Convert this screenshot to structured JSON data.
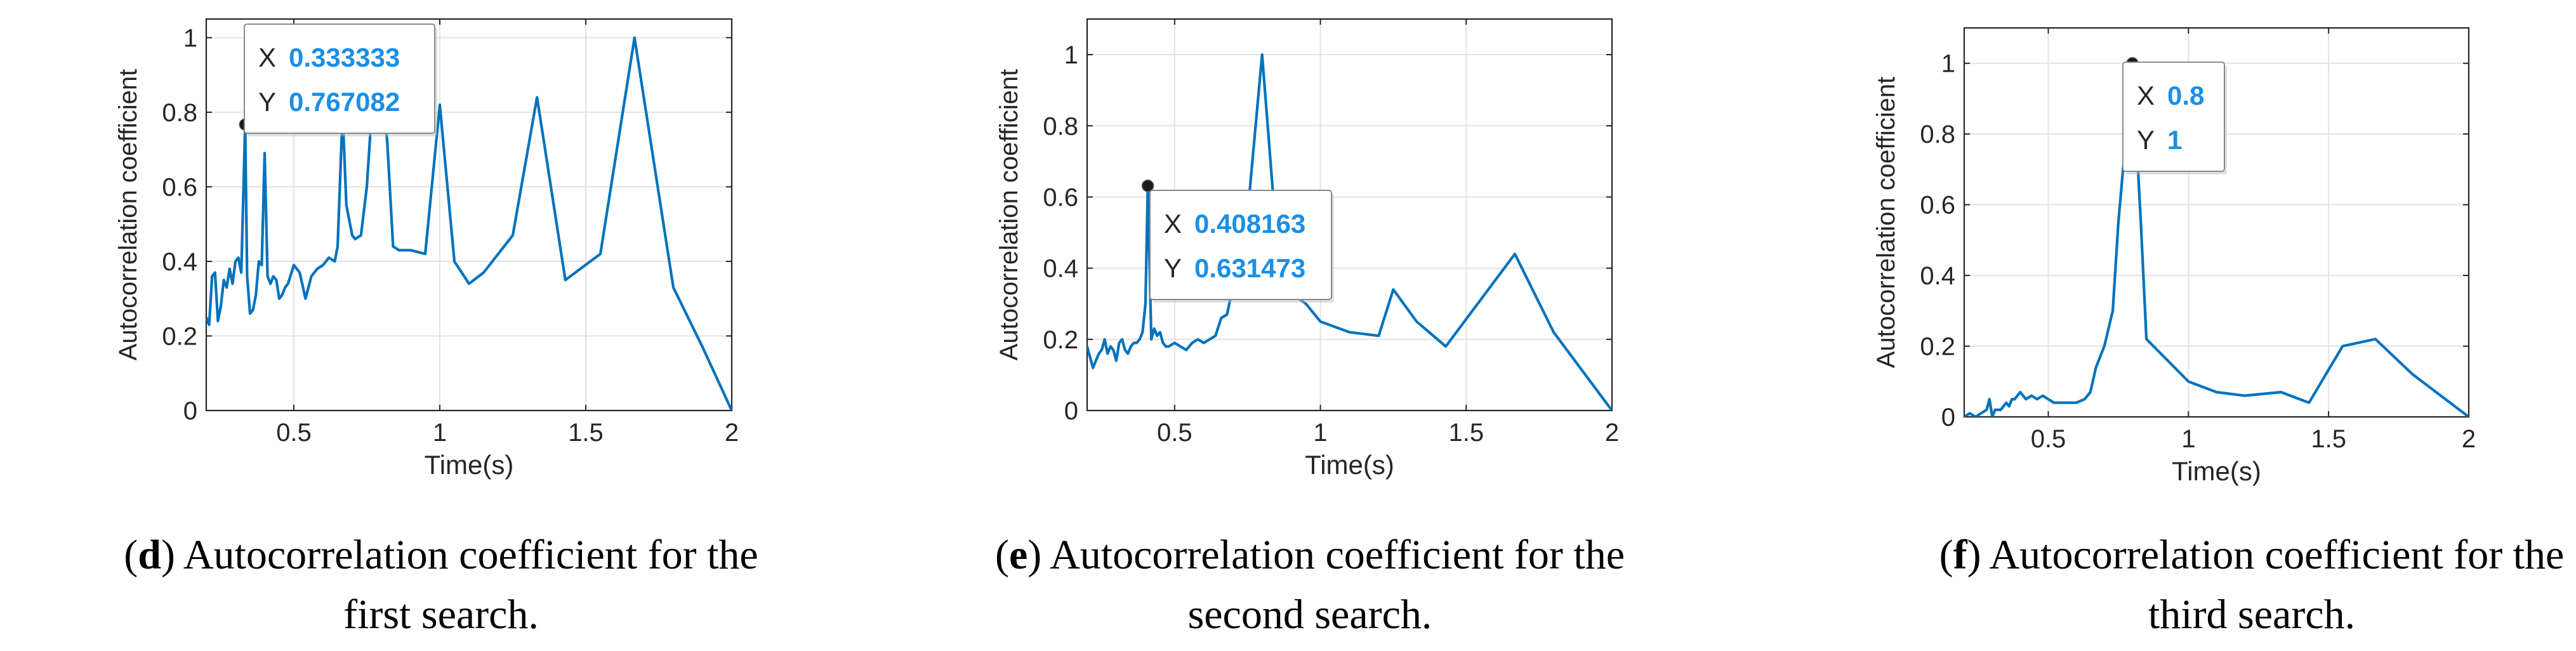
{
  "figure": {
    "panels": [
      {
        "caption_letter": "d",
        "caption_line1": "Autocorrelation coefficient for the",
        "caption_line2": "first search."
      },
      {
        "caption_letter": "e",
        "caption_line1": "Autocorrelation coefficient for the",
        "caption_line2": "second search."
      },
      {
        "caption_letter": "f",
        "caption_line1": "Autocorrelation coefficient for the",
        "caption_line2": "third search."
      }
    ]
  },
  "colors": {
    "line": "#0072BD",
    "datatip_value": "#1a8fe6",
    "axis": "#262626",
    "grid": "#e3e3e3"
  },
  "chart_data": [
    {
      "type": "line",
      "xlabel": "Time(s)",
      "ylabel": "Autocorrelation coefficient",
      "xlim": [
        0.2,
        2.0
      ],
      "ylim": [
        0,
        1.05
      ],
      "xticks": [
        0.5,
        1,
        1.5,
        2
      ],
      "xtick_labels": [
        "0.5",
        "1",
        "1.5",
        "2"
      ],
      "yticks": [
        0,
        0.2,
        0.4,
        0.6,
        0.8,
        1
      ],
      "ytick_labels": [
        "0",
        "0.2",
        "0.4",
        "0.6",
        "0.8",
        "1"
      ],
      "grid": true,
      "x": [
        0.2,
        0.21,
        0.22,
        0.23,
        0.24,
        0.25,
        0.26,
        0.27,
        0.28,
        0.29,
        0.3,
        0.31,
        0.32,
        0.333333,
        0.34,
        0.35,
        0.36,
        0.37,
        0.38,
        0.39,
        0.4,
        0.41,
        0.42,
        0.43,
        0.44,
        0.45,
        0.46,
        0.47,
        0.48,
        0.5,
        0.52,
        0.54,
        0.56,
        0.58,
        0.6,
        0.62,
        0.64,
        0.65,
        0.667,
        0.68,
        0.7,
        0.71,
        0.73,
        0.75,
        0.77,
        0.8,
        0.82,
        0.84,
        0.86,
        0.88,
        0.9,
        0.95,
        1.0,
        1.05,
        1.1,
        1.15,
        1.25,
        1.333,
        1.43,
        1.55,
        1.667,
        1.8,
        1.9,
        2.0
      ],
      "y": [
        0.25,
        0.23,
        0.36,
        0.37,
        0.24,
        0.28,
        0.35,
        0.33,
        0.38,
        0.34,
        0.4,
        0.41,
        0.37,
        0.767082,
        0.36,
        0.26,
        0.27,
        0.31,
        0.4,
        0.39,
        0.69,
        0.36,
        0.34,
        0.36,
        0.35,
        0.3,
        0.31,
        0.33,
        0.34,
        0.39,
        0.37,
        0.3,
        0.36,
        0.38,
        0.39,
        0.41,
        0.4,
        0.44,
        0.8,
        0.55,
        0.47,
        0.46,
        0.47,
        0.6,
        0.84,
        0.89,
        0.72,
        0.44,
        0.43,
        0.43,
        0.43,
        0.42,
        0.82,
        0.4,
        0.34,
        0.37,
        0.47,
        0.84,
        0.35,
        0.42,
        1.0,
        0.33,
        0.17,
        0.0
      ],
      "datatip": {
        "x_prefix": "X",
        "x_value": "0.333333",
        "y_prefix": "Y",
        "y_value": "0.767082",
        "x": 0.333333,
        "y": 0.767082
      }
    },
    {
      "type": "line",
      "xlabel": "Time(s)",
      "ylabel": "Autocorrelation coefficient",
      "xlim": [
        0.2,
        2.0
      ],
      "ylim": [
        0,
        1.1
      ],
      "xticks": [
        0.5,
        1,
        1.5,
        2
      ],
      "xtick_labels": [
        "0.5",
        "1",
        "1.5",
        "2"
      ],
      "yticks": [
        0,
        0.2,
        0.4,
        0.6,
        0.8,
        1
      ],
      "ytick_labels": [
        "0",
        "0.2",
        "0.4",
        "0.6",
        "0.8",
        "1"
      ],
      "grid": true,
      "x": [
        0.2,
        0.21,
        0.22,
        0.23,
        0.24,
        0.25,
        0.26,
        0.27,
        0.28,
        0.29,
        0.3,
        0.31,
        0.32,
        0.33,
        0.34,
        0.35,
        0.36,
        0.37,
        0.38,
        0.39,
        0.4,
        0.408163,
        0.42,
        0.43,
        0.44,
        0.45,
        0.46,
        0.47,
        0.48,
        0.5,
        0.52,
        0.54,
        0.56,
        0.58,
        0.6,
        0.62,
        0.64,
        0.66,
        0.68,
        0.7,
        0.72,
        0.75,
        0.8,
        0.85,
        0.9,
        0.95,
        1.0,
        1.1,
        1.2,
        1.25,
        1.33,
        1.43,
        1.667,
        1.8,
        2.0
      ],
      "y": [
        0.18,
        0.15,
        0.12,
        0.14,
        0.16,
        0.17,
        0.2,
        0.16,
        0.18,
        0.17,
        0.14,
        0.19,
        0.2,
        0.17,
        0.16,
        0.18,
        0.19,
        0.19,
        0.2,
        0.22,
        0.3,
        0.631473,
        0.2,
        0.23,
        0.21,
        0.22,
        0.19,
        0.18,
        0.18,
        0.19,
        0.18,
        0.17,
        0.19,
        0.2,
        0.19,
        0.2,
        0.21,
        0.26,
        0.27,
        0.35,
        0.38,
        0.55,
        1.0,
        0.48,
        0.33,
        0.3,
        0.25,
        0.22,
        0.21,
        0.34,
        0.25,
        0.18,
        0.44,
        0.22,
        0.0
      ],
      "datatip": {
        "x_prefix": "X",
        "x_value": "0.408163",
        "y_prefix": "Y",
        "y_value": "0.631473",
        "x": 0.408163,
        "y": 0.631473
      }
    },
    {
      "type": "line",
      "xlabel": "Time(s)",
      "ylabel": "Autocorrelation coefficient",
      "xlim": [
        0.2,
        2.0
      ],
      "ylim": [
        0,
        1.1
      ],
      "xticks": [
        0.5,
        1,
        1.5,
        2
      ],
      "xtick_labels": [
        "0.5",
        "1",
        "1.5",
        "2"
      ],
      "yticks": [
        0,
        0.2,
        0.4,
        0.6,
        0.8,
        1
      ],
      "ytick_labels": [
        "0",
        "0.2",
        "0.4",
        "0.6",
        "0.8",
        "1"
      ],
      "grid": true,
      "x": [
        0.2,
        0.22,
        0.24,
        0.26,
        0.28,
        0.29,
        0.3,
        0.31,
        0.33,
        0.35,
        0.36,
        0.37,
        0.38,
        0.39,
        0.4,
        0.41,
        0.42,
        0.44,
        0.46,
        0.48,
        0.5,
        0.52,
        0.55,
        0.58,
        0.6,
        0.63,
        0.65,
        0.67,
        0.7,
        0.73,
        0.75,
        0.8,
        0.83,
        0.85,
        0.9,
        1.0,
        1.1,
        1.2,
        1.33,
        1.43,
        1.55,
        1.667,
        1.8,
        2.0
      ],
      "y": [
        0.0,
        0.01,
        0.0,
        0.01,
        0.02,
        0.05,
        0.0,
        0.02,
        0.02,
        0.04,
        0.03,
        0.05,
        0.05,
        0.06,
        0.07,
        0.06,
        0.05,
        0.06,
        0.05,
        0.06,
        0.05,
        0.04,
        0.04,
        0.04,
        0.04,
        0.05,
        0.07,
        0.14,
        0.2,
        0.3,
        0.55,
        1.0,
        0.55,
        0.22,
        0.18,
        0.1,
        0.07,
        0.06,
        0.07,
        0.04,
        0.2,
        0.22,
        0.12,
        0.0
      ],
      "datatip": {
        "x_prefix": "X",
        "x_value": "0.8",
        "y_prefix": "Y",
        "y_value": "1",
        "x": 0.8,
        "y": 1.0
      }
    }
  ]
}
